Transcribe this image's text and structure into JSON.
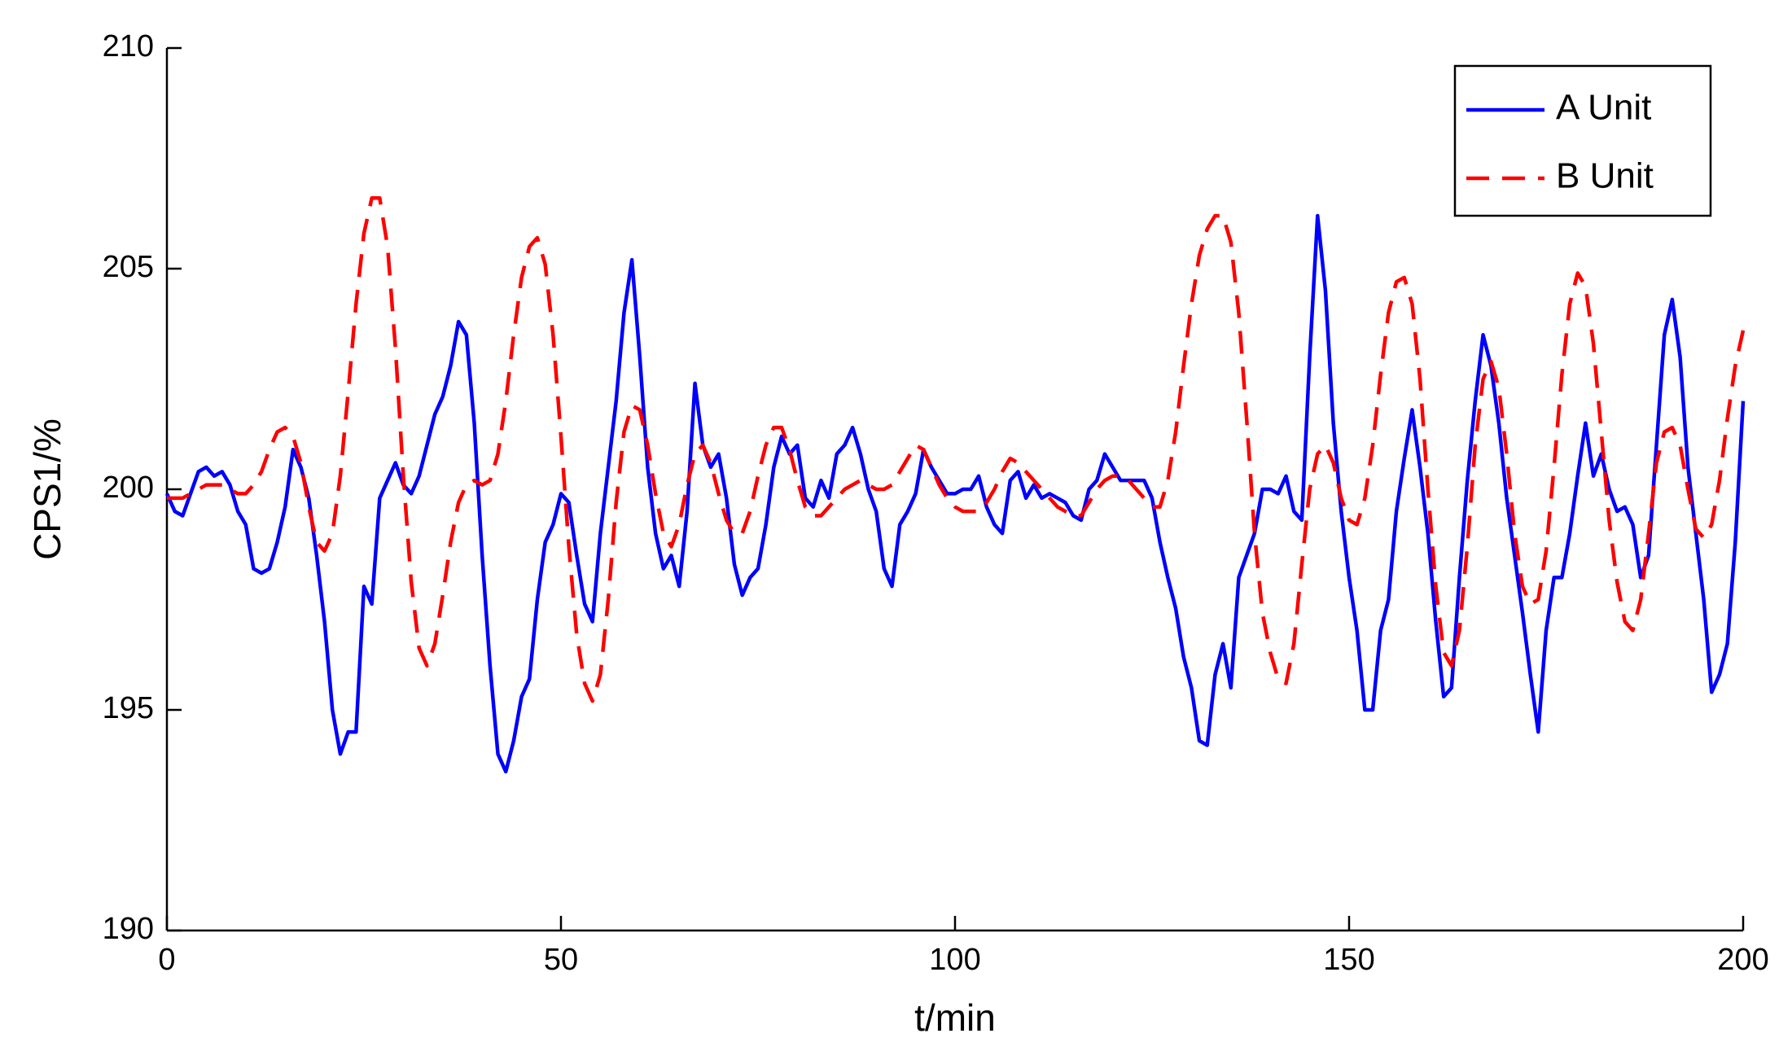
{
  "chart_data": {
    "type": "line",
    "xlabel": "t/min",
    "ylabel": "CPS1/%",
    "xlim": [
      0,
      200
    ],
    "ylim": [
      190,
      210
    ],
    "xticks": [
      0,
      50,
      100,
      150,
      200
    ],
    "yticks": [
      190,
      195,
      200,
      205,
      210
    ],
    "legend": "upper right",
    "x": [
      0,
      1,
      2,
      3,
      4,
      5,
      6,
      7,
      8,
      9,
      10,
      11,
      12,
      13,
      14,
      15,
      16,
      17,
      18,
      19,
      20,
      21,
      22,
      23,
      24,
      25,
      26,
      27,
      28,
      29,
      30,
      31,
      32,
      33,
      34,
      35,
      36,
      37,
      38,
      39,
      40,
      41,
      42,
      43,
      44,
      45,
      46,
      47,
      48,
      49,
      50,
      51,
      52,
      53,
      54,
      55,
      56,
      57,
      58,
      59,
      60,
      61,
      62,
      63,
      64,
      65,
      66,
      67,
      68,
      69,
      70,
      71,
      72,
      73,
      74,
      75,
      76,
      77,
      78,
      79,
      80,
      81,
      82,
      83,
      84,
      85,
      86,
      87,
      88,
      89,
      90,
      91,
      92,
      93,
      94,
      95,
      96,
      97,
      98,
      99,
      100,
      101,
      102,
      103,
      104,
      105,
      106,
      107,
      108,
      109,
      110,
      111,
      112,
      113,
      114,
      115,
      116,
      117,
      118,
      119,
      120,
      121,
      122,
      123,
      124,
      125,
      126,
      127,
      128,
      129,
      130,
      131,
      132,
      133,
      134,
      135,
      136,
      137,
      138,
      139,
      140,
      141,
      142,
      143,
      144,
      145,
      146,
      147,
      148,
      149,
      150,
      151,
      152,
      153,
      154,
      155,
      156,
      157,
      158,
      159,
      160,
      161,
      162,
      163,
      164,
      165,
      166,
      167,
      168,
      169,
      170,
      171,
      172,
      173,
      174,
      175,
      176,
      177,
      178,
      179,
      180,
      181,
      182,
      183,
      184,
      185,
      186,
      187,
      188,
      189,
      190,
      191,
      192,
      193,
      194,
      195,
      196,
      197,
      198,
      199,
      200
    ],
    "series": [
      {
        "name": "A Unit",
        "color": "#0000ff",
        "dash": "solid",
        "values": [
          199.9,
          199.5,
          199.4,
          199.9,
          200.4,
          200.5,
          200.3,
          200.4,
          200.1,
          199.5,
          199.2,
          198.2,
          198.1,
          198.2,
          198.8,
          199.6,
          200.9,
          200.5,
          199.8,
          198.5,
          197.0,
          195.0,
          194.0,
          194.5,
          194.5,
          197.8,
          197.4,
          199.8,
          200.2,
          200.6,
          200.1,
          199.9,
          200.3,
          201.0,
          201.7,
          202.1,
          202.8,
          203.8,
          203.5,
          201.5,
          198.5,
          196.0,
          194.0,
          193.6,
          194.3,
          195.3,
          195.7,
          197.5,
          198.8,
          199.2,
          199.9,
          199.7,
          198.5,
          197.4,
          197.0,
          199.0,
          200.5,
          202.0,
          204.0,
          205.2,
          203.0,
          200.5,
          199.0,
          198.2,
          198.5,
          197.8,
          199.5,
          202.4,
          201.0,
          200.5,
          200.8,
          199.8,
          198.3,
          197.6,
          198.0,
          198.2,
          199.2,
          200.5,
          201.2,
          200.8,
          201.0,
          199.8,
          199.6,
          200.2,
          199.8,
          200.8,
          201.0,
          201.4,
          200.8,
          200.0,
          199.5,
          198.2,
          197.8,
          199.2,
          199.5,
          199.9,
          200.9,
          200.5,
          200.2,
          199.9,
          199.9,
          200.0,
          200.0,
          200.3,
          199.6,
          199.2,
          199.0,
          200.2,
          200.4,
          199.8,
          200.1,
          199.8,
          199.9,
          199.8,
          199.7,
          199.4,
          199.3,
          200.0,
          200.2,
          200.8,
          200.5,
          200.2,
          200.2,
          200.2,
          200.2,
          199.8,
          198.8,
          198.0,
          197.3,
          196.2,
          195.5,
          194.3,
          194.2,
          195.8,
          196.5,
          195.5,
          198.0,
          198.5,
          199.0,
          200.0,
          200.0,
          199.9,
          200.3,
          199.5,
          199.3,
          203.0,
          206.2,
          204.5,
          201.5,
          199.5,
          198.0,
          196.8,
          195.0,
          195.0,
          196.8,
          197.5,
          199.5,
          200.7,
          201.8,
          200.5,
          199.0,
          197.0,
          195.3,
          195.5,
          198.0,
          200.2,
          202.0,
          203.5,
          202.8,
          201.5,
          199.8,
          198.5,
          197.2,
          195.8,
          194.5,
          196.8,
          198.0,
          198.0,
          199.0,
          200.3,
          201.5,
          200.3,
          200.8,
          200.0,
          199.5,
          199.6,
          199.2,
          198.0,
          198.5,
          201.0,
          203.5,
          204.3,
          203.0,
          200.5,
          199.0,
          197.5,
          195.4,
          195.8,
          196.5,
          198.8,
          202.0
        ]
      },
      {
        "name": "B Unit",
        "color": "#ff0000",
        "dash": "dashed",
        "values": [
          199.8,
          199.8,
          199.8,
          199.9,
          200.0,
          200.1,
          200.1,
          200.1,
          200.0,
          199.9,
          199.9,
          200.1,
          200.4,
          200.9,
          201.3,
          201.4,
          201.2,
          200.6,
          199.6,
          198.8,
          198.6,
          199.0,
          200.3,
          202.2,
          204.2,
          205.8,
          206.6,
          206.6,
          205.5,
          203.2,
          200.3,
          197.9,
          196.4,
          196.0,
          196.5,
          197.6,
          198.8,
          199.7,
          200.1,
          200.2,
          200.1,
          200.2,
          200.8,
          202.0,
          203.5,
          204.8,
          205.5,
          205.7,
          205.1,
          203.5,
          201.2,
          198.7,
          196.7,
          195.6,
          195.2,
          195.8,
          197.5,
          199.7,
          201.3,
          201.9,
          201.8,
          201.0,
          199.9,
          199.0,
          198.7,
          199.2,
          200.1,
          200.8,
          201.0,
          200.6,
          199.9,
          199.3,
          199.0,
          199.0,
          199.5,
          200.3,
          201.0,
          201.4,
          201.4,
          200.9,
          200.2,
          199.6,
          199.4,
          199.4,
          199.6,
          199.8,
          200.0,
          200.1,
          200.2,
          200.1,
          200.0,
          200.0,
          200.1,
          200.4,
          200.7,
          201.0,
          200.9,
          200.5,
          200.1,
          199.8,
          199.6,
          199.5,
          199.5,
          199.5,
          199.7,
          200.0,
          200.4,
          200.7,
          200.6,
          200.4,
          200.2,
          200.0,
          199.8,
          199.6,
          199.5,
          199.4,
          199.4,
          199.7,
          200.0,
          200.2,
          200.3,
          200.3,
          200.2,
          200.0,
          199.8,
          199.6,
          199.6,
          200.2,
          201.3,
          202.8,
          204.2,
          205.3,
          205.9,
          206.2,
          206.2,
          205.6,
          204.0,
          201.6,
          199.0,
          197.2,
          196.3,
          195.7,
          195.6,
          196.5,
          198.3,
          200.0,
          200.8,
          201.0,
          200.6,
          199.8,
          199.3,
          199.2,
          199.8,
          201.0,
          202.6,
          204.0,
          204.7,
          204.8,
          204.2,
          202.5,
          200.0,
          197.8,
          196.3,
          196.0,
          196.8,
          198.7,
          201.0,
          202.5,
          202.9,
          202.3,
          200.8,
          199.0,
          197.8,
          197.4,
          197.5,
          198.6,
          200.5,
          202.6,
          204.2,
          204.9,
          204.6,
          203.3,
          201.3,
          199.3,
          197.9,
          197.0,
          196.8,
          197.5,
          199.0,
          200.6,
          201.3,
          201.4,
          201.0,
          200.0,
          199.1,
          198.9,
          199.2,
          200.2,
          201.6,
          202.8,
          203.6
        ]
      }
    ]
  }
}
